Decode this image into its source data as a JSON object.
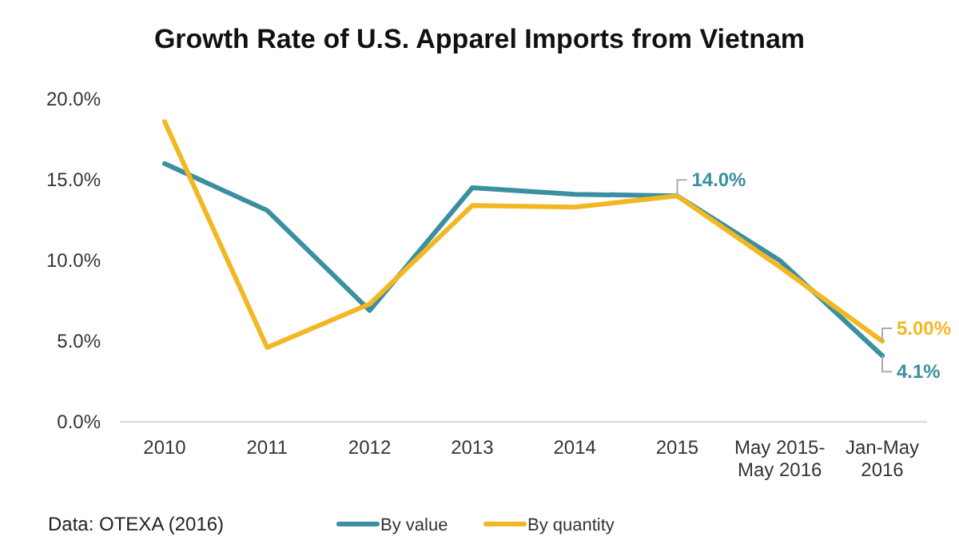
{
  "chart_data": {
    "type": "line",
    "title": "Growth Rate of U.S. Apparel Imports  from Vietnam",
    "categories": [
      "2010",
      "2011",
      "2012",
      "2013",
      "2014",
      "2015",
      "May 2015-\nMay 2016",
      "Jan-May\n2016"
    ],
    "series": [
      {
        "name": "By value",
        "color": "#3a8fa0",
        "values": [
          16.0,
          13.1,
          6.9,
          14.5,
          14.1,
          14.0,
          10.0,
          4.1
        ],
        "value_labels": [
          null,
          null,
          null,
          null,
          null,
          "14.0%",
          null,
          "4.1%"
        ]
      },
      {
        "name": "By quantity",
        "color": "#f2b824",
        "values": [
          18.6,
          4.6,
          7.3,
          13.4,
          13.3,
          14.0,
          9.6,
          5.0
        ],
        "value_labels": [
          null,
          null,
          null,
          null,
          null,
          null,
          null,
          "5.00%"
        ]
      }
    ],
    "ylim": [
      0,
      20
    ],
    "yticks": [
      {
        "value": 0,
        "label": "0.0%"
      },
      {
        "value": 5,
        "label": "5.0%"
      },
      {
        "value": 10,
        "label": "10.0%"
      },
      {
        "value": 15,
        "label": "15.0%"
      },
      {
        "value": 20,
        "label": "20.0%"
      }
    ],
    "grid": false,
    "legend": "bottom",
    "marker": "none",
    "line_style": "solid",
    "annotations": [
      "Data: OTEXA  (2016)"
    ]
  }
}
